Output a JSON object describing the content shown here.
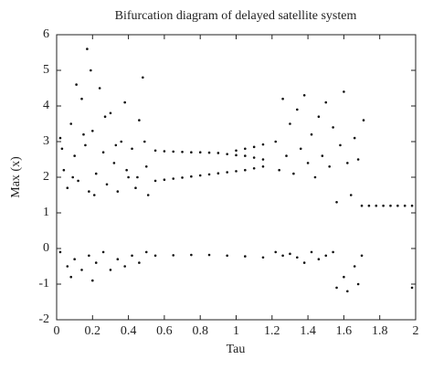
{
  "chart_data": {
    "type": "scatter",
    "title": "Bifurcation diagram of delayed satellite system",
    "x_label": "Tau",
    "y_label": "Max (x)",
    "color": "#111111",
    "xlim": [
      0,
      2
    ],
    "ylim": [
      -2,
      6
    ],
    "xticks": [
      0,
      0.2,
      0.4,
      0.6,
      0.8,
      1,
      1.2,
      1.4,
      1.6,
      1.8,
      2
    ],
    "yticks": [
      -2,
      -1,
      0,
      1,
      2,
      3,
      4,
      5,
      6
    ],
    "x": [
      0.02,
      0.04,
      0.06,
      0.08,
      0.1,
      0.12,
      0.14,
      0.16,
      0.17,
      0.18,
      0.2,
      0.22,
      0.24,
      0.26,
      0.28,
      0.3,
      0.32,
      0.34,
      0.36,
      0.38,
      0.4,
      0.42,
      0.44,
      0.46,
      0.48,
      0.5,
      0.51,
      0.03,
      0.09,
      0.15,
      0.21,
      0.27,
      0.33,
      0.39,
      0.45,
      0.49,
      0.19,
      0.11,
      0.02,
      0.06,
      0.1,
      0.14,
      0.18,
      0.22,
      0.26,
      0.3,
      0.34,
      0.38,
      0.42,
      0.46,
      0.5,
      0.08,
      0.2,
      0.55,
      0.6,
      0.65,
      0.7,
      0.75,
      0.8,
      0.85,
      0.9,
      0.95,
      1.0,
      1.05,
      1.1,
      1.15,
      1.0,
      1.05,
      1.1,
      1.15,
      0.55,
      0.6,
      0.65,
      0.7,
      0.75,
      0.8,
      0.85,
      0.9,
      0.95,
      1.0,
      1.05,
      1.1,
      1.15,
      0.55,
      0.65,
      0.75,
      0.85,
      0.95,
      1.05,
      1.15,
      1.22,
      1.24,
      1.26,
      1.28,
      1.3,
      1.32,
      1.34,
      1.36,
      1.38,
      1.4,
      1.42,
      1.44,
      1.46,
      1.48,
      1.5,
      1.52,
      1.54,
      1.56,
      1.58,
      1.6,
      1.62,
      1.64,
      1.66,
      1.68,
      1.7,
      1.71,
      1.22,
      1.26,
      1.3,
      1.34,
      1.38,
      1.42,
      1.46,
      1.5,
      1.54,
      1.56,
      1.6,
      1.62,
      1.66,
      1.68,
      1.7,
      1.74,
      1.78,
      1.82,
      1.86,
      1.9,
      1.94,
      1.98,
      1.98
    ],
    "values": [
      3.1,
      2.2,
      1.7,
      3.5,
      2.6,
      1.9,
      4.2,
      2.9,
      5.6,
      1.6,
      3.3,
      2.1,
      4.5,
      2.7,
      1.8,
      3.8,
      2.4,
      1.6,
      3.0,
      4.1,
      2.0,
      2.8,
      1.7,
      3.6,
      4.8,
      2.3,
      1.5,
      2.8,
      2.0,
      3.2,
      1.5,
      3.7,
      2.9,
      2.2,
      2.0,
      3.0,
      5.0,
      4.6,
      -0.1,
      -0.5,
      -0.3,
      -0.6,
      -0.2,
      -0.4,
      -0.1,
      -0.6,
      -0.3,
      -0.5,
      -0.2,
      -0.4,
      -0.1,
      -0.8,
      -0.9,
      2.75,
      2.73,
      2.72,
      2.71,
      2.7,
      2.7,
      2.69,
      2.68,
      2.65,
      2.62,
      2.6,
      2.55,
      2.5,
      2.75,
      2.8,
      2.85,
      2.92,
      1.9,
      1.93,
      1.96,
      1.99,
      2.02,
      2.05,
      2.08,
      2.11,
      2.14,
      2.17,
      2.2,
      2.25,
      2.3,
      -0.2,
      -0.19,
      -0.18,
      -0.18,
      -0.2,
      -0.22,
      -0.25,
      3.0,
      2.2,
      4.2,
      2.6,
      3.5,
      2.1,
      3.9,
      2.8,
      4.3,
      2.4,
      3.2,
      2.0,
      3.7,
      2.6,
      4.1,
      2.3,
      3.4,
      1.3,
      2.9,
      4.4,
      2.4,
      1.5,
      3.1,
      2.5,
      1.2,
      3.6,
      -0.1,
      -0.2,
      -0.15,
      -0.25,
      -0.4,
      -0.1,
      -0.3,
      -0.2,
      -0.1,
      -1.1,
      -0.8,
      -1.2,
      -0.5,
      -1.0,
      -0.2,
      1.2,
      1.2,
      1.2,
      1.2,
      1.2,
      1.2,
      1.2,
      -1.1
    ]
  }
}
